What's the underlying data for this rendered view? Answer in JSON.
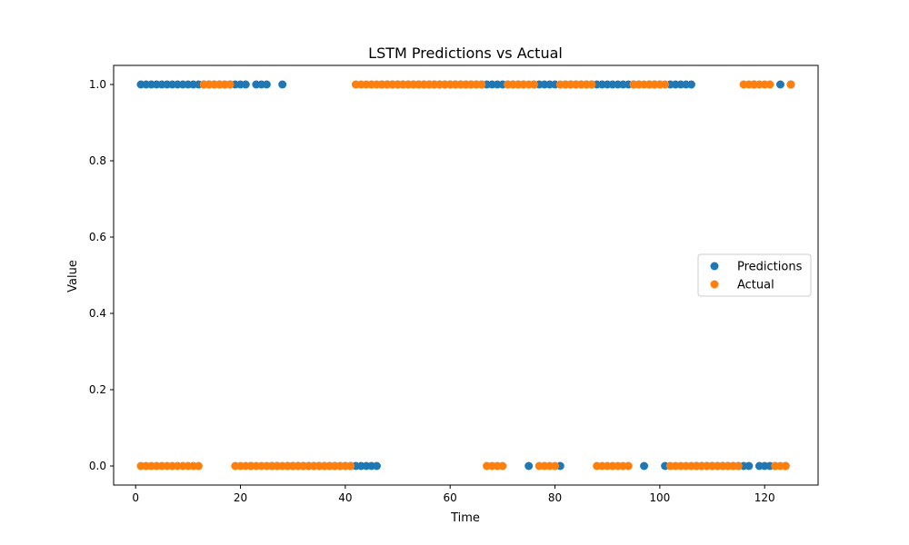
{
  "chart_data": {
    "type": "scatter",
    "title": "LSTM Predictions vs Actual",
    "xlabel": "Time",
    "ylabel": "Value",
    "xlim": [
      -4.2,
      130.2
    ],
    "ylim": [
      -0.05,
      1.05
    ],
    "x_ticks": [
      0,
      20,
      40,
      60,
      80,
      100,
      120
    ],
    "y_ticks": [
      0.0,
      0.2,
      0.4,
      0.6,
      0.8,
      1.0
    ],
    "y_tick_labels": [
      "0.0",
      "0.2",
      "0.4",
      "0.6",
      "0.8",
      "1.0"
    ],
    "grid": false,
    "legend_position": "center right",
    "series": [
      {
        "name": "Predictions",
        "color": "#1f77b4",
        "x": [
          1,
          2,
          3,
          4,
          5,
          6,
          7,
          8,
          9,
          10,
          11,
          12,
          13,
          14,
          15,
          16,
          17,
          18,
          19,
          20,
          21,
          22,
          23,
          24,
          25,
          26,
          27,
          28,
          29,
          30,
          31,
          32,
          33,
          34,
          35,
          36,
          37,
          38,
          39,
          40,
          41,
          42,
          43,
          44,
          45,
          46,
          47,
          48,
          49,
          50,
          51,
          52,
          53,
          54,
          55,
          56,
          57,
          58,
          59,
          60,
          61,
          62,
          63,
          64,
          65,
          66,
          67,
          68,
          69,
          70,
          71,
          72,
          73,
          74,
          75,
          76,
          77,
          78,
          79,
          80,
          81,
          82,
          83,
          84,
          85,
          86,
          87,
          88,
          89,
          90,
          91,
          92,
          93,
          94,
          95,
          96,
          97,
          98,
          99,
          100,
          101,
          102,
          103,
          104,
          105,
          106,
          107,
          108,
          109,
          110,
          111,
          112,
          113,
          114,
          115,
          116,
          117,
          118,
          119,
          120,
          121,
          122,
          123,
          124,
          125
        ],
        "y": [
          1,
          1,
          1,
          1,
          1,
          1,
          1,
          1,
          1,
          1,
          1,
          1,
          1,
          1,
          1,
          1,
          1,
          1,
          1,
          1,
          1,
          0,
          1,
          1,
          1,
          0,
          0,
          1,
          0,
          0,
          0,
          0,
          0,
          0,
          0,
          0,
          0,
          0,
          0,
          0,
          0,
          0,
          0,
          0,
          0,
          0,
          1,
          1,
          1,
          1,
          1,
          1,
          1,
          1,
          1,
          1,
          1,
          1,
          1,
          1,
          1,
          1,
          1,
          1,
          1,
          1,
          1,
          1,
          1,
          1,
          1,
          1,
          1,
          1,
          0,
          1,
          1,
          1,
          1,
          1,
          0,
          1,
          1,
          1,
          1,
          1,
          1,
          1,
          1,
          1,
          1,
          1,
          1,
          1,
          1,
          1,
          0,
          1,
          1,
          1,
          0,
          1,
          1,
          1,
          1,
          1,
          0,
          0,
          0,
          0,
          0,
          0,
          0,
          0,
          0,
          0,
          0,
          1,
          0,
          0,
          0,
          0,
          1,
          0,
          1
        ]
      },
      {
        "name": "Actual",
        "color": "#ff7f0e",
        "x": [
          1,
          2,
          3,
          4,
          5,
          6,
          7,
          8,
          9,
          10,
          11,
          12,
          13,
          14,
          15,
          16,
          17,
          18,
          19,
          20,
          21,
          22,
          23,
          24,
          25,
          26,
          27,
          28,
          29,
          30,
          31,
          32,
          33,
          34,
          35,
          36,
          37,
          38,
          39,
          40,
          41,
          42,
          43,
          44,
          45,
          46,
          47,
          48,
          49,
          50,
          51,
          52,
          53,
          54,
          55,
          56,
          57,
          58,
          59,
          60,
          61,
          62,
          63,
          64,
          65,
          66,
          67,
          68,
          69,
          70,
          71,
          72,
          73,
          74,
          75,
          76,
          77,
          78,
          79,
          80,
          81,
          82,
          83,
          84,
          85,
          86,
          87,
          88,
          89,
          90,
          91,
          92,
          93,
          94,
          95,
          96,
          97,
          98,
          99,
          100,
          101,
          102,
          103,
          104,
          105,
          106,
          107,
          108,
          109,
          110,
          111,
          112,
          113,
          114,
          115,
          116,
          117,
          118,
          119,
          120,
          121,
          122,
          123,
          124,
          125
        ],
        "y": [
          0,
          0,
          0,
          0,
          0,
          0,
          0,
          0,
          0,
          0,
          0,
          0,
          1,
          1,
          1,
          1,
          1,
          1,
          0,
          0,
          0,
          0,
          0,
          0,
          0,
          0,
          0,
          0,
          0,
          0,
          0,
          0,
          0,
          0,
          0,
          0,
          0,
          0,
          0,
          0,
          0,
          1,
          1,
          1,
          1,
          1,
          1,
          1,
          1,
          1,
          1,
          1,
          1,
          1,
          1,
          1,
          1,
          1,
          1,
          1,
          1,
          1,
          1,
          1,
          1,
          1,
          0,
          0,
          0,
          0,
          1,
          1,
          1,
          1,
          1,
          1,
          0,
          0,
          0,
          0,
          1,
          1,
          1,
          1,
          1,
          1,
          1,
          0,
          0,
          0,
          0,
          0,
          0,
          0,
          1,
          1,
          1,
          1,
          1,
          1,
          1,
          0,
          0,
          0,
          0,
          0,
          0,
          0,
          0,
          0,
          0,
          0,
          0,
          0,
          0,
          1,
          1,
          1,
          1,
          1,
          1,
          0,
          0,
          0,
          1
        ]
      }
    ]
  }
}
